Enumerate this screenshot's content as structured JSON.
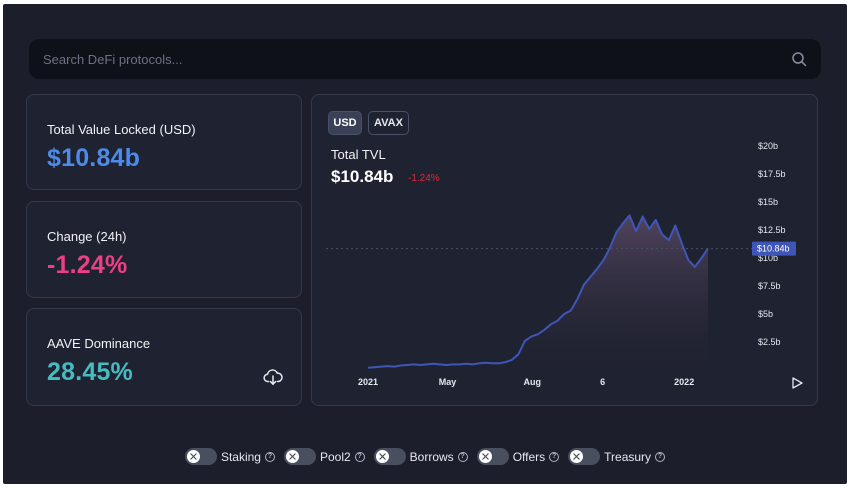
{
  "search": {
    "placeholder": "Search DeFi protocols..."
  },
  "stats": {
    "tvl": {
      "label": "Total Value Locked (USD)",
      "value": "$10.84b",
      "color": "#4c8bea"
    },
    "change": {
      "label": "Change (24h)",
      "value": "-1.24%",
      "color": "#ec3f84"
    },
    "dominance": {
      "label": "AAVE Dominance",
      "value": "28.45%",
      "color": "#46bcc0"
    }
  },
  "chart": {
    "currency_buttons": [
      "USD",
      "AVAX"
    ],
    "active_currency": "USD",
    "title": "Total TVL",
    "value": "$10.84b",
    "change": "-1.24%",
    "current_marker": "$10.84b"
  },
  "chart_data": {
    "type": "area",
    "title": "Total TVL",
    "y_ticks": [
      "$2.5b",
      "$5b",
      "$7.5b",
      "$10b",
      "$12.5b",
      "$15b",
      "$17.5b",
      "$20b"
    ],
    "x_ticks": [
      "2021",
      "May",
      "Aug",
      "6",
      "2022"
    ],
    "ylim": [
      0,
      20
    ],
    "series": [
      {
        "values": [
          0.2,
          0.25,
          0.3,
          0.35,
          0.3,
          0.4,
          0.45,
          0.5,
          0.45,
          0.5,
          0.55,
          0.5,
          0.45,
          0.5,
          0.5,
          0.55,
          0.5,
          0.6,
          0.65,
          0.6,
          0.6,
          0.7,
          0.9,
          1.4,
          2.6,
          3.0,
          3.2,
          3.6,
          4.1,
          4.4,
          5.0,
          5.3,
          6.3,
          7.6,
          8.3,
          9.0,
          9.8,
          10.9,
          12.3,
          13.1,
          13.8,
          12.4,
          13.7,
          12.6,
          13.4,
          12.1,
          11.6,
          12.9,
          11.3,
          9.8,
          9.2,
          10.0,
          10.84
        ]
      }
    ],
    "grid": false
  },
  "filters": [
    {
      "label": "Staking",
      "enabled": false
    },
    {
      "label": "Pool2",
      "enabled": false
    },
    {
      "label": "Borrows",
      "enabled": false
    },
    {
      "label": "Offers",
      "enabled": false
    },
    {
      "label": "Treasury",
      "enabled": false
    }
  ],
  "icons": {
    "search": "search-icon",
    "download": "download-icon",
    "play": "play-icon",
    "help": "help-icon",
    "close": "close-icon"
  },
  "colors": {
    "line": "#3f56b8",
    "marker_bg": "#3f56b8",
    "negative": "#e02b3c"
  }
}
